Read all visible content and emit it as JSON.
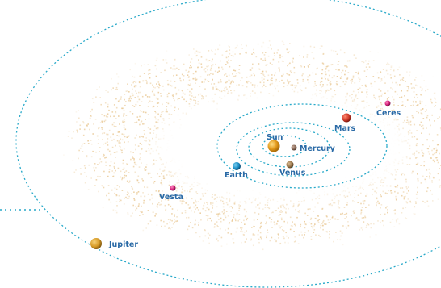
{
  "colors": {
    "orbit": "#28a9c9",
    "label": "#2a6aa6",
    "belt": "#e8c690",
    "sun": "#e39a1c",
    "mercury": "#8a6a58",
    "venus": "#9b7a4f",
    "earth": "#1d8fc6",
    "mars": "#d03a2a",
    "ceres": "#d4207a",
    "vesta": "#d4207a",
    "jupiter": "#d69a25"
  },
  "bodies": {
    "sun": {
      "label": "Sun",
      "icon": "sun-icon"
    },
    "mercury": {
      "label": "Mercury",
      "icon": "planet-icon"
    },
    "venus": {
      "label": "Venus",
      "icon": "planet-icon"
    },
    "earth": {
      "label": "Earth",
      "icon": "planet-icon"
    },
    "mars": {
      "label": "Mars",
      "icon": "planet-icon"
    },
    "ceres": {
      "label": "Ceres",
      "icon": "dwarf-planet-icon"
    },
    "vesta": {
      "label": "Vesta",
      "icon": "asteroid-icon"
    },
    "jupiter": {
      "label": "Jupiter",
      "icon": "planet-icon"
    }
  }
}
